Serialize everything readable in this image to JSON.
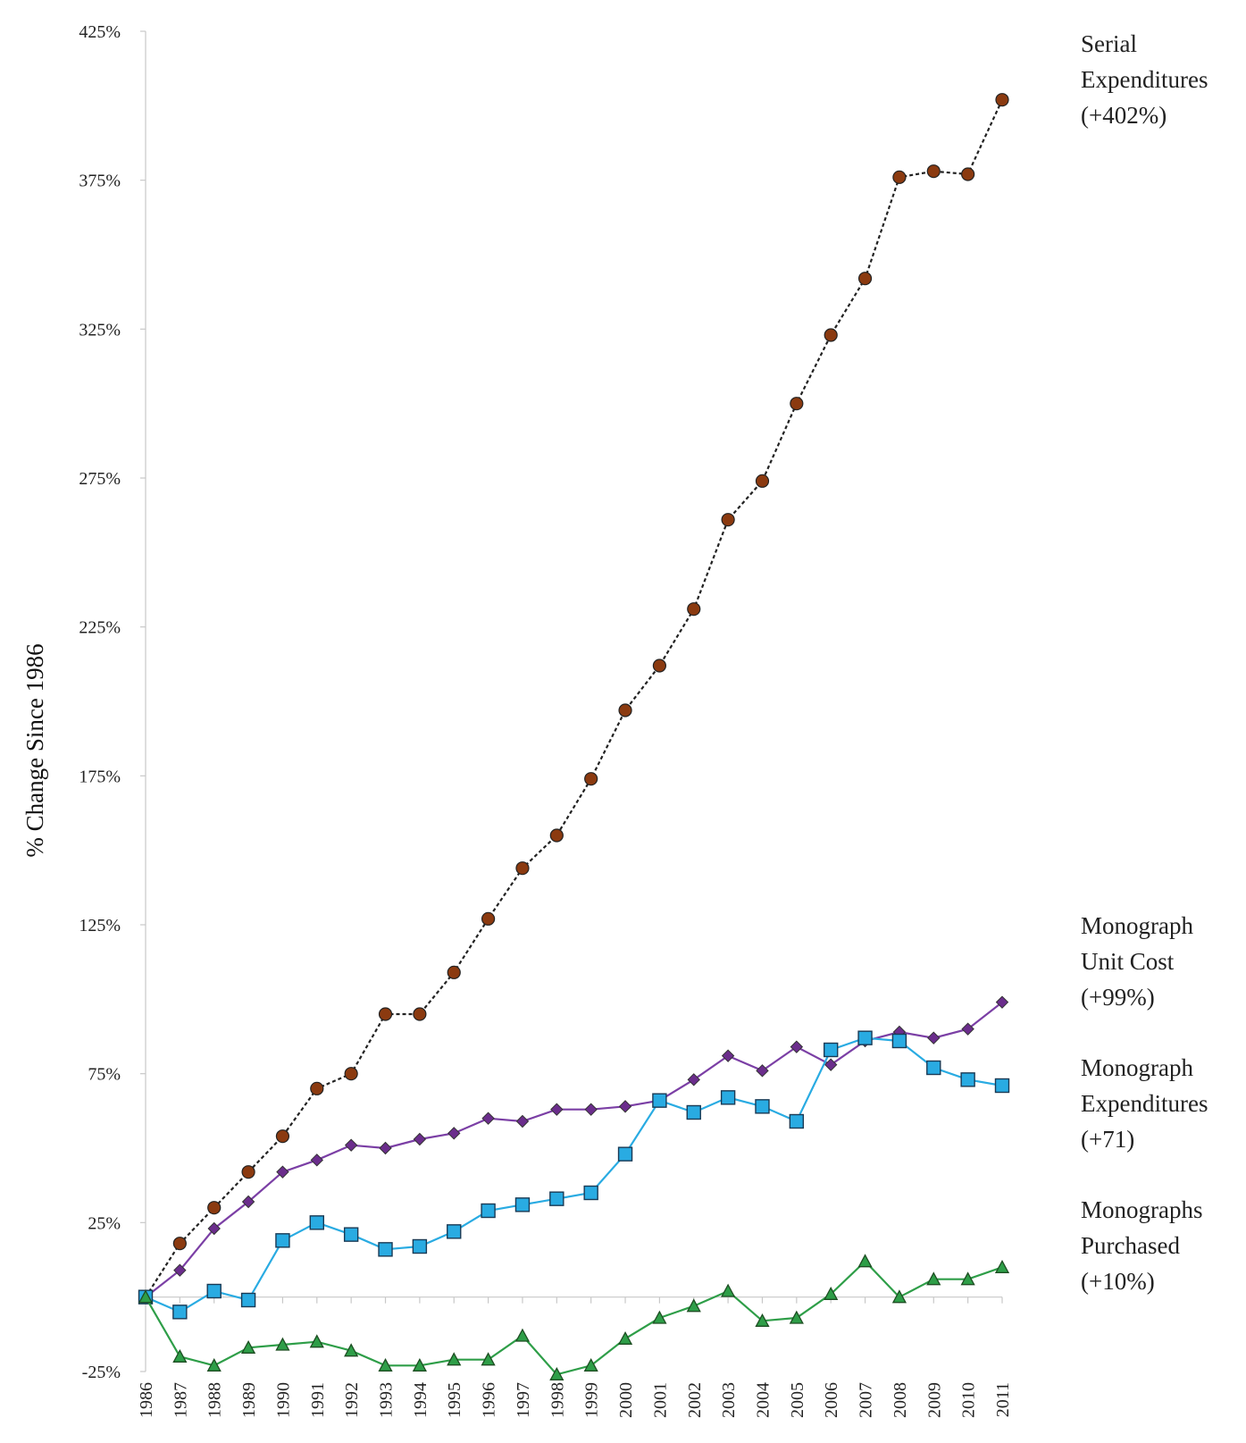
{
  "chart_data": {
    "type": "line",
    "title": "",
    "xlabel": "",
    "ylabel": "% Change Since 1986",
    "ylim": [
      -25,
      425
    ],
    "y_ticks": [
      -25,
      25,
      75,
      125,
      175,
      225,
      275,
      325,
      375,
      425
    ],
    "y_tick_labels": [
      "-25%",
      "25%",
      "75%",
      "125%",
      "175%",
      "225%",
      "275%",
      "325%",
      "375%",
      "425%"
    ],
    "x": [
      1986,
      1987,
      1988,
      1989,
      1990,
      1991,
      1992,
      1993,
      1994,
      1995,
      1996,
      1997,
      1998,
      1999,
      2000,
      2001,
      2002,
      2003,
      2004,
      2005,
      2006,
      2007,
      2008,
      2009,
      2010,
      2011
    ],
    "x_tick_labels": [
      "1986",
      "1987",
      "1988",
      "1989",
      "1990",
      "1991",
      "1992",
      "1993",
      "1994",
      "1995",
      "1996",
      "1997",
      "1998",
      "1999",
      "2000",
      "2001",
      "2002",
      "2003",
      "2004",
      "2005",
      "2006",
      "2007",
      "2008",
      "2009",
      "2010",
      "2011"
    ],
    "grid": false,
    "legend": "inline labels at right end of each series",
    "series": [
      {
        "label": [
          "Serial",
          "Expenditures",
          "(+402%)"
        ],
        "color": "#8B3A10",
        "line_style": "dashed",
        "line_color": "#222222",
        "marker": "circle",
        "values": [
          0,
          18,
          30,
          42,
          54,
          70,
          75,
          95,
          95,
          109,
          127,
          144,
          155,
          174,
          197,
          212,
          231,
          261,
          274,
          300,
          323,
          342,
          376,
          378,
          377,
          402
        ]
      },
      {
        "label": [
          "Monograph",
          "Unit Cost",
          "(+99%)"
        ],
        "color": "#6B2D8C",
        "line_style": "solid",
        "line_color": "#7B3FA5",
        "marker": "diamond",
        "values": [
          0,
          9,
          23,
          32,
          42,
          46,
          51,
          50,
          53,
          55,
          60,
          59,
          63,
          63,
          64,
          66,
          73,
          81,
          76,
          84,
          78,
          86,
          89,
          87,
          90,
          99
        ]
      },
      {
        "label": [
          "Monograph",
          "Expenditures",
          "(+71)"
        ],
        "color": "#29ABE2",
        "line_style": "solid",
        "line_color": "#29ABE2",
        "marker": "square",
        "values": [
          0,
          -5,
          2,
          -1,
          19,
          25,
          21,
          16,
          17,
          22,
          29,
          31,
          33,
          35,
          48,
          66,
          62,
          67,
          64,
          59,
          83,
          87,
          86,
          77,
          73,
          71
        ]
      },
      {
        "label": [
          "Monographs",
          "Purchased",
          "(+10%)"
        ],
        "color": "#2E9E48",
        "line_style": "solid",
        "line_color": "#2E9E48",
        "marker": "triangle",
        "values": [
          0,
          -20,
          -23,
          -17,
          -16,
          -15,
          -18,
          -23,
          -23,
          -21,
          -21,
          -13,
          -26,
          -23,
          -14,
          -7,
          -3,
          2,
          -8,
          -7,
          1,
          12,
          0,
          6,
          6,
          10
        ]
      }
    ]
  }
}
